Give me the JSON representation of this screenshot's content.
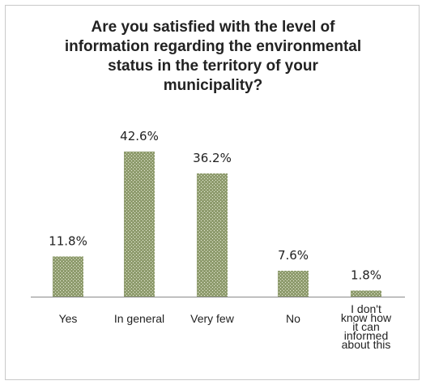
{
  "chart_data": {
    "type": "bar",
    "title": [
      "Are you satisfied with the level of",
      "information regarding the environmental",
      "status in the territory of your",
      "municipality?"
    ],
    "categories": [
      [
        "Yes"
      ],
      [
        "In general"
      ],
      [
        "Very few"
      ],
      [
        "No"
      ],
      [
        "I don't",
        "know how",
        "it can",
        "informed",
        "about this"
      ]
    ],
    "values": [
      11.8,
      42.6,
      36.2,
      7.6,
      1.8
    ],
    "value_labels": [
      "11.8%",
      "42.6%",
      "36.2%",
      "7.6%",
      "1.8%"
    ],
    "ylim": [
      0,
      42.6
    ],
    "grid": false,
    "legend": "none",
    "bar_color": "#8f9c6e",
    "bar_pattern_color": "#e9ecd9"
  }
}
